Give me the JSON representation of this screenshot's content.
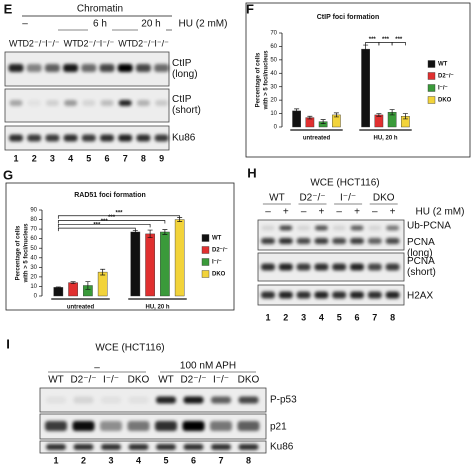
{
  "panel_labels": [
    "E",
    "F",
    "G",
    "H",
    "I"
  ],
  "blot_e": {
    "header": "Chromatin",
    "treatment": "HU (2 mM)",
    "groups": [
      "–",
      "6 h",
      "20 h"
    ],
    "lanes": [
      "WT",
      "D2⁻/⁻",
      "I⁻/⁻",
      "WT",
      "D2⁻/⁻",
      "I⁻/⁻",
      "WT",
      "D2⁻/⁻",
      "I⁻/⁻"
    ],
    "bands": [
      [
        "CtIP",
        "(long)"
      ],
      [
        "CtIP",
        "(short)"
      ],
      [
        "Ku86"
      ]
    ],
    "lane_numbers": [
      1,
      2,
      3,
      4,
      5,
      6,
      7,
      8,
      9
    ]
  },
  "chart_data": [
    {
      "type": "bar",
      "title": "CtIP foci formation",
      "ylabel": [
        "Percentage of cells",
        "with > 5 foci/nucleus"
      ],
      "categories": [
        "untreated",
        "HU, 20 h"
      ],
      "series": [
        {
          "name": "WT",
          "color": "#111111",
          "values": [
            12,
            58
          ],
          "errors": [
            1.5,
            3
          ]
        },
        {
          "name": "D2⁻/⁻",
          "color": "#e03030",
          "values": [
            7,
            9
          ],
          "errors": [
            1,
            1
          ]
        },
        {
          "name": "I⁻/⁻",
          "color": "#3a9a3a",
          "values": [
            4,
            11
          ],
          "errors": [
            1.5,
            2
          ]
        },
        {
          "name": "DKO",
          "color": "#f2d33a",
          "values": [
            9,
            8
          ],
          "errors": [
            1.5,
            2
          ]
        }
      ],
      "annotations": [
        "***",
        "***",
        "***"
      ],
      "ylim": [
        0,
        70
      ],
      "yticks": [
        0,
        10,
        20,
        30,
        40,
        50,
        60,
        70
      ],
      "legend": "right"
    },
    {
      "type": "bar",
      "title": "RAD51 foci formation",
      "ylabel": [
        "Percentage of cells",
        "with > 5 foci/nucleus"
      ],
      "categories": [
        "untreated",
        "HU, 20 h"
      ],
      "series": [
        {
          "name": "WT",
          "color": "#111111",
          "values": [
            9,
            67
          ],
          "errors": [
            0.5,
            1.5
          ]
        },
        {
          "name": "D2⁻/⁻",
          "color": "#e03030",
          "values": [
            14,
            65
          ],
          "errors": [
            1,
            4
          ]
        },
        {
          "name": "I⁻/⁻",
          "color": "#3a9a3a",
          "values": [
            11,
            67
          ],
          "errors": [
            4,
            2.5
          ]
        },
        {
          "name": "DKO",
          "color": "#f2d33a",
          "values": [
            25,
            80
          ],
          "errors": [
            3,
            2
          ]
        }
      ],
      "annotations": [
        "***",
        "***",
        "***",
        "***"
      ],
      "ylim": [
        0,
        90
      ],
      "yticks": [
        0,
        10,
        20,
        30,
        40,
        50,
        60,
        70,
        80,
        90
      ],
      "legend": "right"
    }
  ],
  "blot_h": {
    "header": "WCE (HCT116)",
    "lanes": [
      "WT",
      "D2⁻/⁻",
      "I⁻/⁻",
      "DKO"
    ],
    "signs": [
      "–",
      "+",
      "–",
      "+",
      "–",
      "+",
      "–",
      "+"
    ],
    "treatment": "HU (2 mM)",
    "bands": [
      [
        "Ub-PCNA"
      ],
      [
        "PCNA",
        "(long)"
      ],
      [
        "PCNA",
        "(short)"
      ],
      [
        "H2AX"
      ]
    ],
    "lane_numbers": [
      1,
      2,
      3,
      4,
      5,
      6,
      7,
      8
    ]
  },
  "blot_i": {
    "header": "WCE (HCT116)",
    "groups": [
      "–",
      "100 nM APH"
    ],
    "lanes": [
      "WT",
      "D2⁻/⁻",
      "I⁻/⁻",
      "DKO",
      "WT",
      "D2⁻/⁻",
      "I⁻/⁻",
      "DKO"
    ],
    "bands": [
      [
        "P-p53"
      ],
      [
        "p21"
      ],
      [
        "Ku86"
      ]
    ],
    "lane_numbers": [
      1,
      2,
      3,
      4,
      5,
      6,
      7,
      8
    ]
  }
}
